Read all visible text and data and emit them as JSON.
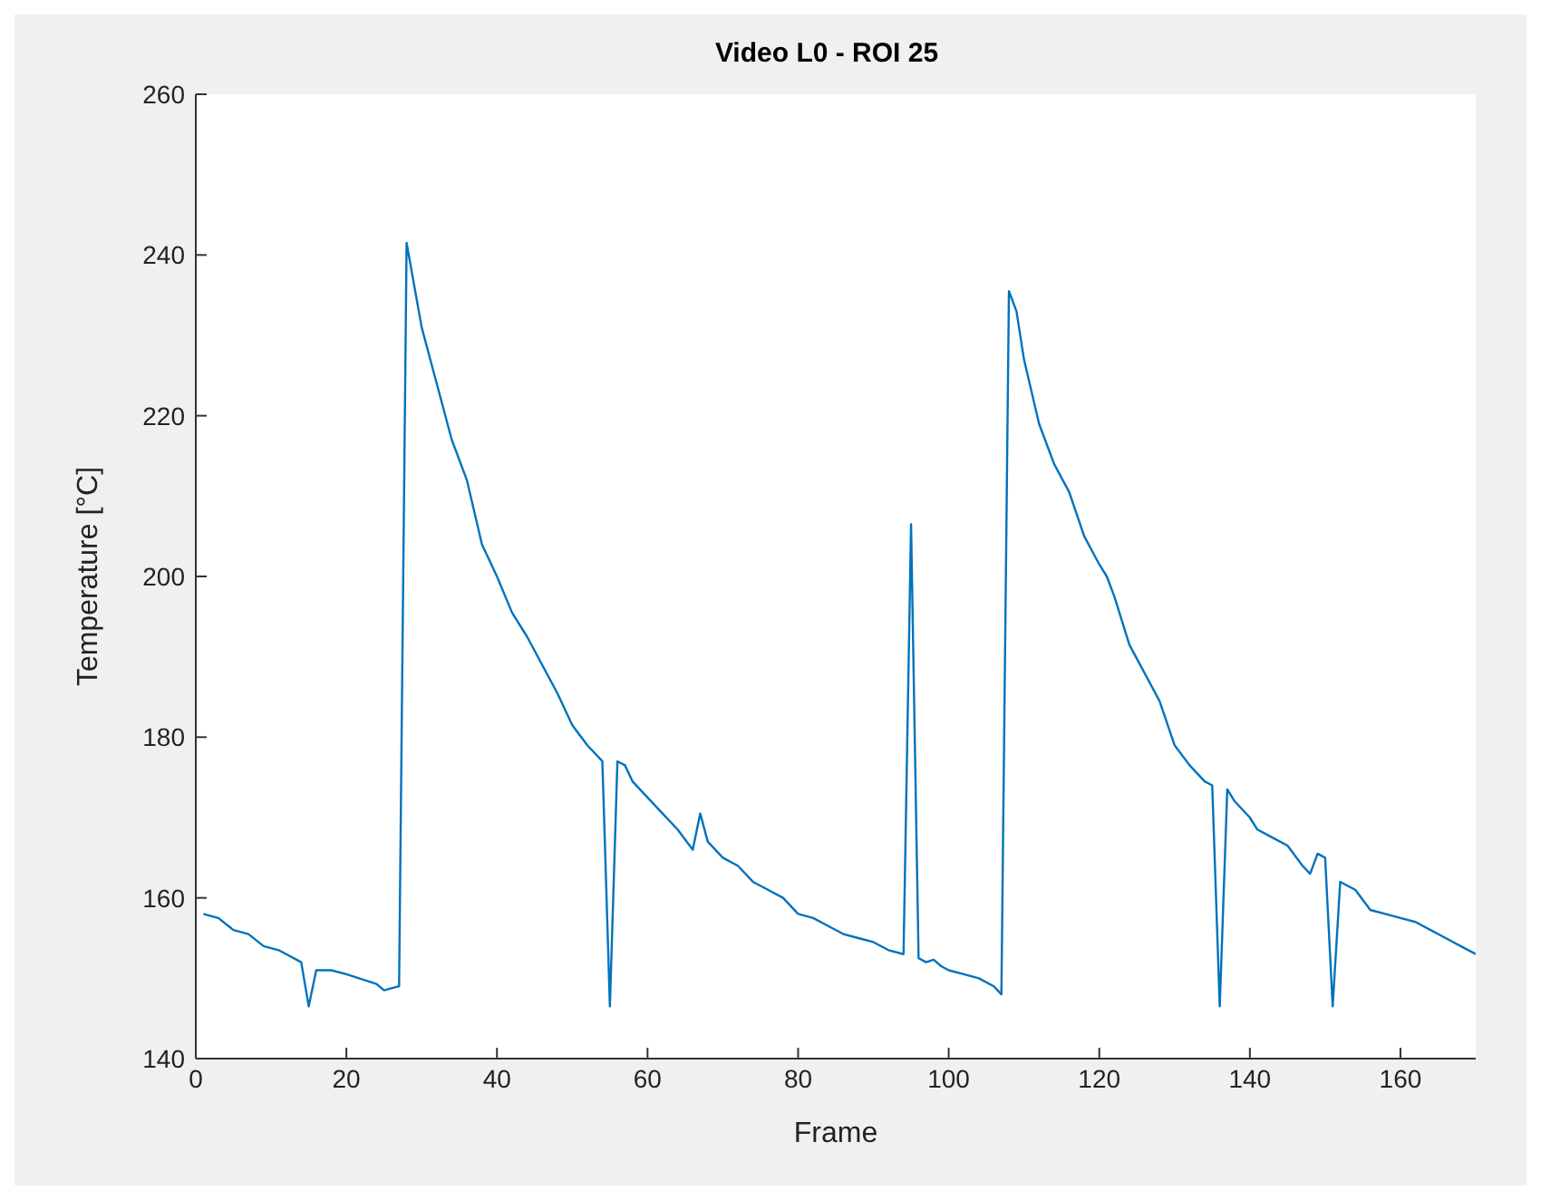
{
  "chart_data": {
    "type": "line",
    "title": "Video L0 - ROI 25",
    "xlabel": "Frame",
    "ylabel": "Temperature [°C]",
    "x": [
      1,
      3,
      5,
      7,
      9,
      11,
      14,
      15,
      16,
      18,
      20,
      24,
      25,
      27,
      28,
      30,
      32,
      34,
      36,
      38,
      40,
      42,
      44,
      46,
      48,
      50,
      52,
      54,
      55,
      56,
      57,
      58,
      60,
      62,
      64,
      66,
      67,
      68,
      70,
      72,
      74,
      76,
      78,
      80,
      82,
      84,
      86,
      88,
      90,
      92,
      94,
      95,
      96,
      97,
      98,
      99,
      100,
      102,
      104,
      106,
      107,
      108,
      109,
      110,
      112,
      114,
      116,
      118,
      120,
      121,
      122,
      124,
      126,
      128,
      130,
      132,
      134,
      135,
      136,
      137,
      138,
      140,
      141,
      143,
      145,
      147,
      148,
      149,
      150,
      151,
      152,
      154,
      156,
      158,
      160,
      162,
      164,
      166,
      168,
      170
    ],
    "series": [
      {
        "color": "#0072bd",
        "values": [
          158,
          157.5,
          156,
          155.5,
          154,
          153.5,
          152,
          146.5,
          151,
          151,
          150.5,
          149.3,
          148.5,
          149,
          241.5,
          231,
          224,
          217,
          212,
          204,
          200,
          195.5,
          192.5,
          189,
          185.5,
          181.5,
          179,
          177,
          146.5,
          177,
          176.5,
          174.5,
          172.5,
          170.5,
          168.5,
          166,
          170.5,
          167,
          165,
          164,
          162,
          161,
          160,
          158,
          157.5,
          156.5,
          155.5,
          155,
          154.5,
          153.5,
          153,
          206.5,
          152.5,
          152,
          152.3,
          151.5,
          151,
          150.5,
          150,
          149,
          148,
          235.5,
          233,
          227,
          219,
          214,
          210.5,
          205,
          201.5,
          200,
          197.5,
          191.5,
          188,
          184.5,
          179,
          176.5,
          174.5,
          174,
          146.5,
          173.5,
          172,
          170,
          168.5,
          167.5,
          166.5,
          164,
          163,
          165.5,
          165,
          146.5,
          162,
          161,
          158.5,
          158,
          157.5,
          157,
          156,
          155,
          154,
          153
        ]
      }
    ],
    "xlim": [
      0,
      170
    ],
    "xticks": [
      0,
      20,
      40,
      60,
      80,
      100,
      120,
      140,
      160
    ],
    "ylim": [
      140,
      260
    ],
    "yticks": [
      140,
      160,
      180,
      200,
      220,
      240,
      260
    ],
    "grid": false,
    "marker": "none",
    "line_style": "solid"
  }
}
